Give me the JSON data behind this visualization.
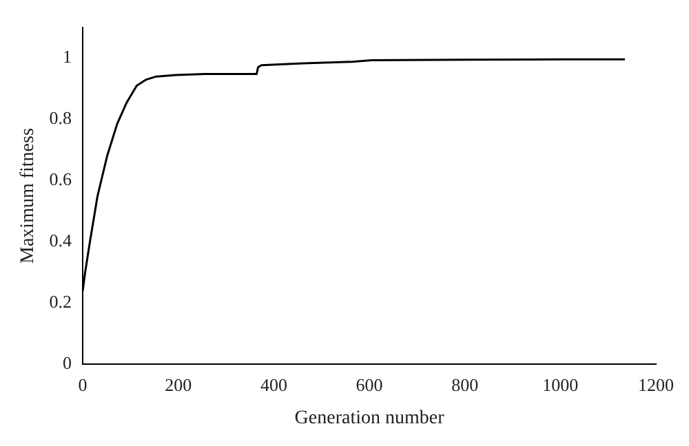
{
  "chart_data": {
    "type": "line",
    "xlabel": "Generation number",
    "ylabel": "Maximum fitness",
    "x": [
      0,
      5,
      15,
      31,
      51,
      72,
      92,
      113,
      133,
      154,
      195,
      256,
      364,
      367,
      374,
      462,
      564,
      605,
      800,
      1000,
      1135
    ],
    "series": [
      {
        "color": "#000000",
        "values": [
          0.24,
          0.3,
          0.4,
          0.55,
          0.68,
          0.785,
          0.855,
          0.91,
          0.93,
          0.94,
          0.945,
          0.948,
          0.948,
          0.97,
          0.977,
          0.983,
          0.988,
          0.993,
          0.995,
          0.996,
          0.996
        ]
      }
    ],
    "xlim": [
      0,
      1200
    ],
    "xticks": [
      0,
      200,
      400,
      600,
      800,
      1000,
      1200
    ],
    "ylim": [
      0,
      1.1
    ],
    "yticks": [
      0,
      0.2,
      0.4,
      0.6,
      0.8,
      1
    ],
    "grid": false,
    "legend": false,
    "marker": "none",
    "line_style": "solid"
  }
}
